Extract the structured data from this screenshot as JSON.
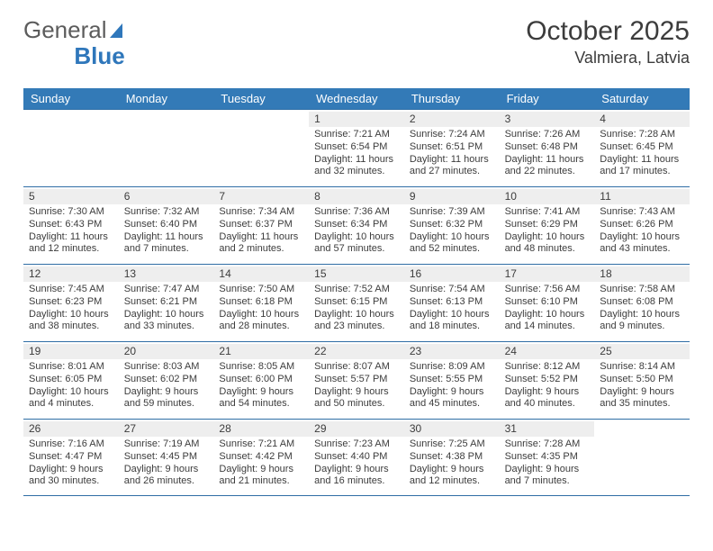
{
  "header": {
    "logo_general": "General",
    "logo_blue": "Blue",
    "title": "October 2025",
    "location": "Valmiera, Latvia"
  },
  "colors": {
    "header_bg": "#337ab7",
    "border": "#2f6ea5",
    "shade": "#eeeeee",
    "text": "#3c3c3c"
  },
  "days_of_week": [
    "Sunday",
    "Monday",
    "Tuesday",
    "Wednesday",
    "Thursday",
    "Friday",
    "Saturday"
  ],
  "weeks": [
    [
      {
        "empty": true
      },
      {
        "empty": true
      },
      {
        "empty": true
      },
      {
        "num": "1",
        "sunrise": "Sunrise: 7:21 AM",
        "sunset": "Sunset: 6:54 PM",
        "daylight": "Daylight: 11 hours and 32 minutes."
      },
      {
        "num": "2",
        "sunrise": "Sunrise: 7:24 AM",
        "sunset": "Sunset: 6:51 PM",
        "daylight": "Daylight: 11 hours and 27 minutes."
      },
      {
        "num": "3",
        "sunrise": "Sunrise: 7:26 AM",
        "sunset": "Sunset: 6:48 PM",
        "daylight": "Daylight: 11 hours and 22 minutes."
      },
      {
        "num": "4",
        "sunrise": "Sunrise: 7:28 AM",
        "sunset": "Sunset: 6:45 PM",
        "daylight": "Daylight: 11 hours and 17 minutes."
      }
    ],
    [
      {
        "num": "5",
        "sunrise": "Sunrise: 7:30 AM",
        "sunset": "Sunset: 6:43 PM",
        "daylight": "Daylight: 11 hours and 12 minutes."
      },
      {
        "num": "6",
        "sunrise": "Sunrise: 7:32 AM",
        "sunset": "Sunset: 6:40 PM",
        "daylight": "Daylight: 11 hours and 7 minutes."
      },
      {
        "num": "7",
        "sunrise": "Sunrise: 7:34 AM",
        "sunset": "Sunset: 6:37 PM",
        "daylight": "Daylight: 11 hours and 2 minutes."
      },
      {
        "num": "8",
        "sunrise": "Sunrise: 7:36 AM",
        "sunset": "Sunset: 6:34 PM",
        "daylight": "Daylight: 10 hours and 57 minutes."
      },
      {
        "num": "9",
        "sunrise": "Sunrise: 7:39 AM",
        "sunset": "Sunset: 6:32 PM",
        "daylight": "Daylight: 10 hours and 52 minutes."
      },
      {
        "num": "10",
        "sunrise": "Sunrise: 7:41 AM",
        "sunset": "Sunset: 6:29 PM",
        "daylight": "Daylight: 10 hours and 48 minutes."
      },
      {
        "num": "11",
        "sunrise": "Sunrise: 7:43 AM",
        "sunset": "Sunset: 6:26 PM",
        "daylight": "Daylight: 10 hours and 43 minutes."
      }
    ],
    [
      {
        "num": "12",
        "sunrise": "Sunrise: 7:45 AM",
        "sunset": "Sunset: 6:23 PM",
        "daylight": "Daylight: 10 hours and 38 minutes."
      },
      {
        "num": "13",
        "sunrise": "Sunrise: 7:47 AM",
        "sunset": "Sunset: 6:21 PM",
        "daylight": "Daylight: 10 hours and 33 minutes."
      },
      {
        "num": "14",
        "sunrise": "Sunrise: 7:50 AM",
        "sunset": "Sunset: 6:18 PM",
        "daylight": "Daylight: 10 hours and 28 minutes."
      },
      {
        "num": "15",
        "sunrise": "Sunrise: 7:52 AM",
        "sunset": "Sunset: 6:15 PM",
        "daylight": "Daylight: 10 hours and 23 minutes."
      },
      {
        "num": "16",
        "sunrise": "Sunrise: 7:54 AM",
        "sunset": "Sunset: 6:13 PM",
        "daylight": "Daylight: 10 hours and 18 minutes."
      },
      {
        "num": "17",
        "sunrise": "Sunrise: 7:56 AM",
        "sunset": "Sunset: 6:10 PM",
        "daylight": "Daylight: 10 hours and 14 minutes."
      },
      {
        "num": "18",
        "sunrise": "Sunrise: 7:58 AM",
        "sunset": "Sunset: 6:08 PM",
        "daylight": "Daylight: 10 hours and 9 minutes."
      }
    ],
    [
      {
        "num": "19",
        "sunrise": "Sunrise: 8:01 AM",
        "sunset": "Sunset: 6:05 PM",
        "daylight": "Daylight: 10 hours and 4 minutes."
      },
      {
        "num": "20",
        "sunrise": "Sunrise: 8:03 AM",
        "sunset": "Sunset: 6:02 PM",
        "daylight": "Daylight: 9 hours and 59 minutes."
      },
      {
        "num": "21",
        "sunrise": "Sunrise: 8:05 AM",
        "sunset": "Sunset: 6:00 PM",
        "daylight": "Daylight: 9 hours and 54 minutes."
      },
      {
        "num": "22",
        "sunrise": "Sunrise: 8:07 AM",
        "sunset": "Sunset: 5:57 PM",
        "daylight": "Daylight: 9 hours and 50 minutes."
      },
      {
        "num": "23",
        "sunrise": "Sunrise: 8:09 AM",
        "sunset": "Sunset: 5:55 PM",
        "daylight": "Daylight: 9 hours and 45 minutes."
      },
      {
        "num": "24",
        "sunrise": "Sunrise: 8:12 AM",
        "sunset": "Sunset: 5:52 PM",
        "daylight": "Daylight: 9 hours and 40 minutes."
      },
      {
        "num": "25",
        "sunrise": "Sunrise: 8:14 AM",
        "sunset": "Sunset: 5:50 PM",
        "daylight": "Daylight: 9 hours and 35 minutes."
      }
    ],
    [
      {
        "num": "26",
        "sunrise": "Sunrise: 7:16 AM",
        "sunset": "Sunset: 4:47 PM",
        "daylight": "Daylight: 9 hours and 30 minutes."
      },
      {
        "num": "27",
        "sunrise": "Sunrise: 7:19 AM",
        "sunset": "Sunset: 4:45 PM",
        "daylight": "Daylight: 9 hours and 26 minutes."
      },
      {
        "num": "28",
        "sunrise": "Sunrise: 7:21 AM",
        "sunset": "Sunset: 4:42 PM",
        "daylight": "Daylight: 9 hours and 21 minutes."
      },
      {
        "num": "29",
        "sunrise": "Sunrise: 7:23 AM",
        "sunset": "Sunset: 4:40 PM",
        "daylight": "Daylight: 9 hours and 16 minutes."
      },
      {
        "num": "30",
        "sunrise": "Sunrise: 7:25 AM",
        "sunset": "Sunset: 4:38 PM",
        "daylight": "Daylight: 9 hours and 12 minutes."
      },
      {
        "num": "31",
        "sunrise": "Sunrise: 7:28 AM",
        "sunset": "Sunset: 4:35 PM",
        "daylight": "Daylight: 9 hours and 7 minutes."
      },
      {
        "empty": true
      }
    ]
  ]
}
